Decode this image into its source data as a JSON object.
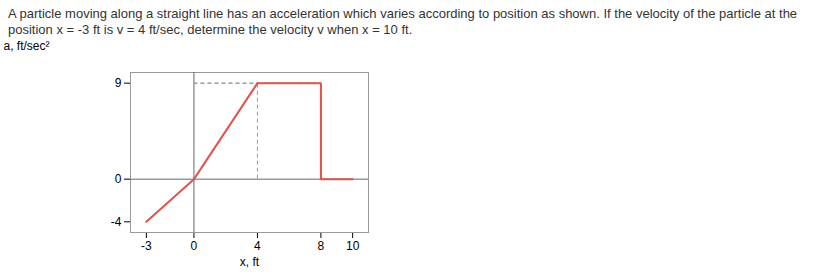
{
  "chart_data": {
    "type": "line",
    "title": "A particle moving along a straight line has an acceleration which varies according to position as shown. If the velocity of the particle at the position x = -3 ft is v = 4 ft/sec, determine the velocity v when x = 10 ft.",
    "x_label": "x, ft",
    "y_label": "a, ft/sec²",
    "x": [
      -3,
      0,
      4,
      8,
      8,
      10
    ],
    "values": [
      -4,
      0,
      9,
      9,
      0,
      0
    ],
    "color": "#e0524a",
    "xlim": [
      -4,
      11
    ],
    "ylim": [
      -5,
      10
    ],
    "xticks": [
      -3,
      0,
      4,
      8,
      10
    ],
    "yticks": [
      -4,
      0,
      9
    ],
    "grid": false
  }
}
